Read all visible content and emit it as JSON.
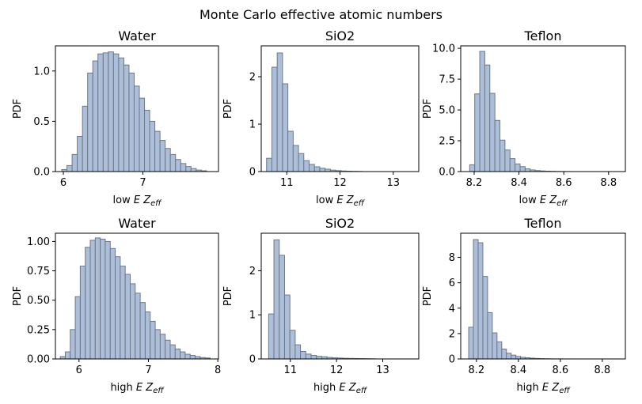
{
  "figure": {
    "title": "Monte Carlo effective atomic numbers"
  },
  "chart_data": [
    {
      "type": "bar",
      "title": "Water",
      "xlabel_prefix": "low",
      "ylabel": "PDF",
      "xlim": [
        5.9,
        7.95
      ],
      "ylim": [
        0,
        1.25
      ],
      "xticks": [
        6,
        7
      ],
      "yticks": [
        0.0,
        0.5,
        1.0
      ],
      "bin_start": 5.98,
      "bin_width": 0.065,
      "values": [
        0.02,
        0.06,
        0.17,
        0.35,
        0.65,
        0.98,
        1.1,
        1.17,
        1.18,
        1.19,
        1.17,
        1.13,
        1.06,
        0.98,
        0.85,
        0.73,
        0.61,
        0.5,
        0.4,
        0.31,
        0.23,
        0.17,
        0.12,
        0.08,
        0.05,
        0.03,
        0.015,
        0.008
      ]
    },
    {
      "type": "bar",
      "title": "SiO2",
      "xlabel_prefix": "low",
      "ylabel": "PDF",
      "xlim": [
        10.52,
        13.48
      ],
      "ylim": [
        0,
        2.65
      ],
      "xticks": [
        11,
        12,
        13
      ],
      "yticks": [
        0,
        1,
        2
      ],
      "bin_start": 10.62,
      "bin_width": 0.1,
      "values": [
        0.28,
        2.2,
        2.5,
        1.85,
        0.85,
        0.55,
        0.38,
        0.23,
        0.15,
        0.1,
        0.07,
        0.05,
        0.03,
        0.02,
        0.012,
        0.008,
        0.005,
        0.003
      ]
    },
    {
      "type": "bar",
      "title": "Teflon",
      "xlabel_prefix": "low",
      "ylabel": "PDF",
      "xlim": [
        8.14,
        8.875
      ],
      "ylim": [
        0,
        10.2
      ],
      "xticks": [
        8.2,
        8.4,
        8.6,
        8.8
      ],
      "yticks": [
        0.0,
        2.5,
        5.0,
        7.5,
        10.0
      ],
      "bin_start": 8.18,
      "bin_width": 0.0225,
      "values": [
        0.55,
        6.3,
        9.75,
        8.65,
        6.35,
        4.15,
        2.55,
        1.75,
        1.05,
        0.62,
        0.4,
        0.22,
        0.13,
        0.08,
        0.05,
        0.03,
        0.02,
        0.012,
        0.008,
        0.005
      ]
    },
    {
      "type": "bar",
      "title": "Water",
      "xlabel_prefix": "high",
      "ylabel": "PDF",
      "xlim": [
        5.66,
        8.01
      ],
      "ylim": [
        0,
        1.07
      ],
      "xticks": [
        6,
        7,
        8
      ],
      "yticks": [
        0.0,
        0.25,
        0.5,
        0.75,
        1.0
      ],
      "bin_start": 5.73,
      "bin_width": 0.072,
      "values": [
        0.02,
        0.06,
        0.25,
        0.53,
        0.79,
        0.95,
        1.01,
        1.03,
        1.02,
        1.0,
        0.94,
        0.87,
        0.79,
        0.72,
        0.64,
        0.56,
        0.48,
        0.4,
        0.32,
        0.25,
        0.21,
        0.16,
        0.12,
        0.085,
        0.06,
        0.04,
        0.03,
        0.02,
        0.012,
        0.008
      ]
    },
    {
      "type": "bar",
      "title": "SiO2",
      "xlabel_prefix": "high",
      "ylabel": "PDF",
      "xlim": [
        10.37,
        13.78
      ],
      "ylim": [
        0,
        2.85
      ],
      "xticks": [
        11,
        12,
        13
      ],
      "yticks": [
        0,
        1,
        2
      ],
      "bin_start": 10.53,
      "bin_width": 0.115,
      "values": [
        1.02,
        2.7,
        2.35,
        1.45,
        0.65,
        0.32,
        0.17,
        0.11,
        0.08,
        0.06,
        0.05,
        0.035,
        0.025,
        0.02,
        0.015,
        0.012,
        0.01,
        0.008,
        0.006,
        0.004
      ]
    },
    {
      "type": "bar",
      "title": "Teflon",
      "xlabel_prefix": "high",
      "ylabel": "PDF",
      "xlim": [
        8.125,
        8.91
      ],
      "ylim": [
        0,
        9.9
      ],
      "xticks": [
        8.2,
        8.4,
        8.6,
        8.8
      ],
      "yticks": [
        0,
        2,
        4,
        6,
        8
      ],
      "bin_start": 8.163,
      "bin_width": 0.0225,
      "values": [
        2.5,
        9.4,
        9.15,
        6.5,
        3.65,
        2.05,
        1.35,
        0.78,
        0.45,
        0.3,
        0.2,
        0.13,
        0.09,
        0.06,
        0.04,
        0.025,
        0.015,
        0.01,
        0.006,
        0.004,
        0.003,
        0.002
      ]
    }
  ]
}
